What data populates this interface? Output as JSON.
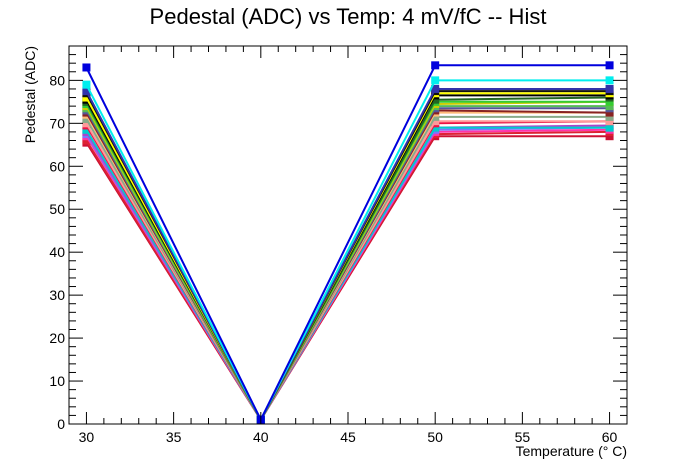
{
  "chart_data": {
    "type": "line",
    "title": "Pedestal (ADC) vs Temp: 4 mV/fC -- Hist",
    "xlabel": "Temperature (° C)",
    "ylabel": "Pedestal (ADC)",
    "xlim": [
      29,
      61
    ],
    "ylim": [
      0,
      88
    ],
    "x": [
      30,
      40,
      50,
      60
    ],
    "x_ticks": [
      30,
      35,
      40,
      45,
      50,
      55,
      60
    ],
    "y_ticks": [
      0,
      10,
      20,
      30,
      40,
      50,
      60,
      70,
      80
    ],
    "grid": false,
    "legend": "none",
    "series": [
      {
        "color": "#cc1133",
        "values": [
          65.5,
          1,
          67,
          67
        ]
      },
      {
        "color": "#dd2233",
        "values": [
          66,
          1,
          67.5,
          68
        ]
      },
      {
        "color": "#ff33aa",
        "values": [
          67,
          1,
          68,
          68.5
        ]
      },
      {
        "color": "#7777ff",
        "values": [
          67.5,
          1,
          68.5,
          69
        ]
      },
      {
        "color": "#aa44cc",
        "values": [
          68,
          1,
          69,
          69.5
        ]
      },
      {
        "color": "#00cccc",
        "values": [
          68.5,
          1,
          69,
          69
        ]
      },
      {
        "color": "#ee1144",
        "values": [
          69.5,
          1,
          70,
          70.5
        ]
      },
      {
        "color": "#ff9999",
        "values": [
          70,
          1,
          70.5,
          70.5
        ]
      },
      {
        "color": "#88aa88",
        "values": [
          71,
          1,
          71.5,
          71.5
        ]
      },
      {
        "color": "#ffbb77",
        "values": [
          72,
          1,
          72.5,
          72.5
        ]
      },
      {
        "color": "#882222",
        "values": [
          72.5,
          1,
          73,
          72.5
        ]
      },
      {
        "color": "#555599",
        "values": [
          73,
          1,
          73.5,
          73.5
        ]
      },
      {
        "color": "#55bb55",
        "values": [
          73.5,
          1,
          74,
          74
        ]
      },
      {
        "color": "#cccc00",
        "values": [
          74,
          1,
          74.5,
          75
        ]
      },
      {
        "color": "#33cc33",
        "values": [
          74.5,
          1,
          75,
          75
        ]
      },
      {
        "color": "#226622",
        "values": [
          75,
          1,
          75.5,
          76
        ]
      },
      {
        "color": "#000000",
        "values": [
          75.5,
          1,
          76.5,
          76.5
        ]
      },
      {
        "color": "#ffff00",
        "values": [
          76,
          1,
          77,
          77
        ]
      },
      {
        "color": "#111111",
        "values": [
          77,
          1,
          77.5,
          77.5
        ]
      },
      {
        "color": "#3333aa",
        "values": [
          77.5,
          1,
          78,
          78
        ]
      },
      {
        "color": "#00eeee",
        "values": [
          79,
          1,
          80,
          80
        ]
      },
      {
        "color": "#0000dd",
        "values": [
          83,
          1,
          83.5,
          83.5
        ]
      }
    ]
  }
}
